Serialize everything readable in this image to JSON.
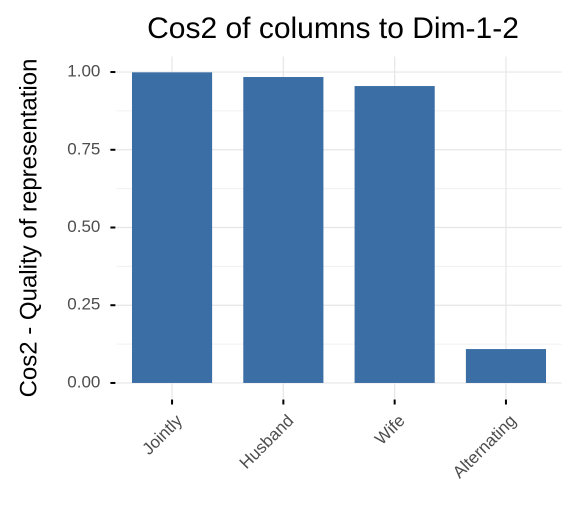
{
  "chart_data": {
    "type": "bar",
    "title": "Cos2 of columns to Dim-1-2",
    "y_label": "Cos2 - Quality of representation",
    "categories": [
      "Jointly",
      "Husband",
      "Wife",
      "Alternating"
    ],
    "values": [
      0.999,
      0.984,
      0.955,
      0.109
    ],
    "color": "#3a6ea5",
    "ylim": [
      -0.05,
      1.05
    ],
    "yticks": [
      {
        "value": 0,
        "label": "0.00"
      },
      {
        "value": 0.25,
        "label": "0.25"
      },
      {
        "value": 0.5,
        "label": "0.50"
      },
      {
        "value": 0.75,
        "label": "0.75"
      },
      {
        "value": 1,
        "label": "1.00"
      }
    ],
    "grid": true
  }
}
